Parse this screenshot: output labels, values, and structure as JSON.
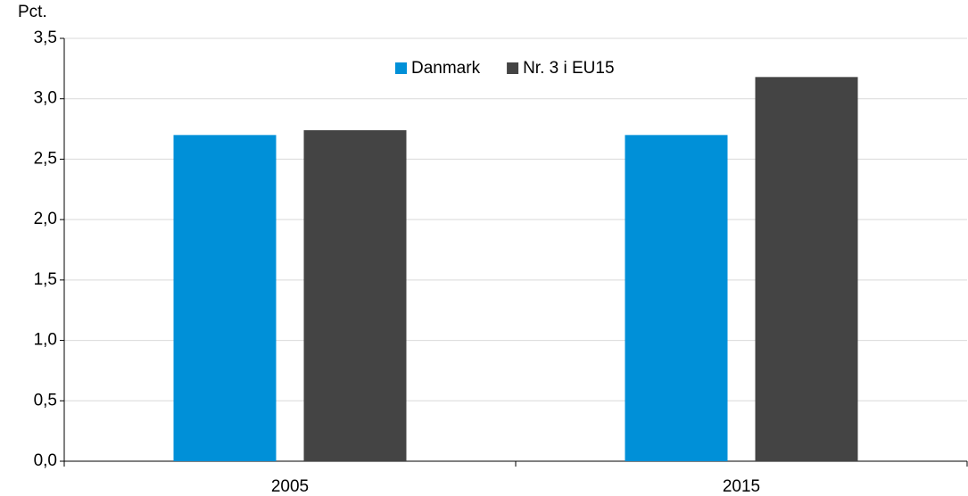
{
  "chart_data": {
    "type": "bar",
    "y_label": "Pct.",
    "categories": [
      "2005",
      "2015"
    ],
    "series": [
      {
        "name": "Danmark",
        "color": "#0090d8",
        "values": [
          2.7,
          2.7
        ]
      },
      {
        "name": "Nr. 3 i EU15",
        "color": "#444444",
        "values": [
          2.74,
          3.18
        ]
      }
    ],
    "ylim": [
      0,
      3.5
    ],
    "yticks": [
      {
        "value": 0,
        "label": "0,0"
      },
      {
        "value": 0.5,
        "label": "0,5"
      },
      {
        "value": 1,
        "label": "1,0"
      },
      {
        "value": 1.5,
        "label": "1,5"
      },
      {
        "value": 2,
        "label": "2,0"
      },
      {
        "value": 2.5,
        "label": "2,5"
      },
      {
        "value": 3,
        "label": "3,0"
      },
      {
        "value": 3.5,
        "label": "3,5"
      }
    ],
    "grid": true,
    "legend": "top"
  }
}
